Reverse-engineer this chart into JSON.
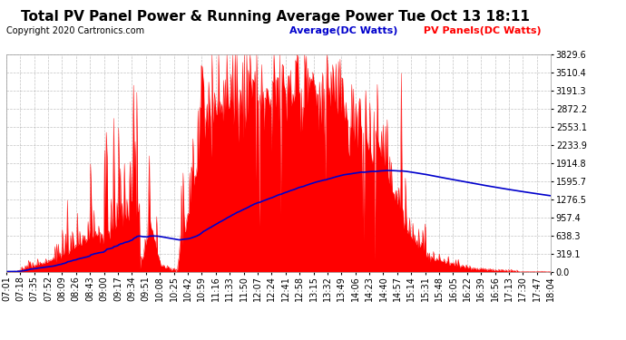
{
  "title": "Total PV Panel Power & Running Average Power Tue Oct 13 18:11",
  "copyright": "Copyright 2020 Cartronics.com",
  "legend_avg": "Average(DC Watts)",
  "legend_pv": " PV Panels(DC Watts)",
  "avg_color": "#0000cc",
  "pv_color": "#ff0000",
  "legend_avg_color": "#0000cc",
  "legend_pv_color": "#ff0000",
  "background_color": "#ffffff",
  "grid_color": "#aaaaaa",
  "ymax": 3829.6,
  "ytick_values": [
    0.0,
    319.1,
    638.3,
    957.4,
    1276.5,
    1595.7,
    1914.8,
    2233.9,
    2553.1,
    2872.2,
    3191.3,
    3510.4,
    3829.6
  ],
  "x_labels": [
    "07:01",
    "07:18",
    "07:35",
    "07:52",
    "08:09",
    "08:26",
    "08:43",
    "09:00",
    "09:17",
    "09:34",
    "09:51",
    "10:08",
    "10:25",
    "10:42",
    "10:59",
    "11:16",
    "11:33",
    "11:50",
    "12:07",
    "12:24",
    "12:41",
    "12:58",
    "13:15",
    "13:32",
    "13:49",
    "14:06",
    "14:23",
    "14:40",
    "14:57",
    "15:14",
    "15:31",
    "15:48",
    "16:05",
    "16:22",
    "16:39",
    "16:56",
    "17:13",
    "17:30",
    "17:47",
    "18:04"
  ],
  "title_fontsize": 11,
  "copyright_fontsize": 7,
  "axis_fontsize": 7,
  "legend_fontsize": 8
}
